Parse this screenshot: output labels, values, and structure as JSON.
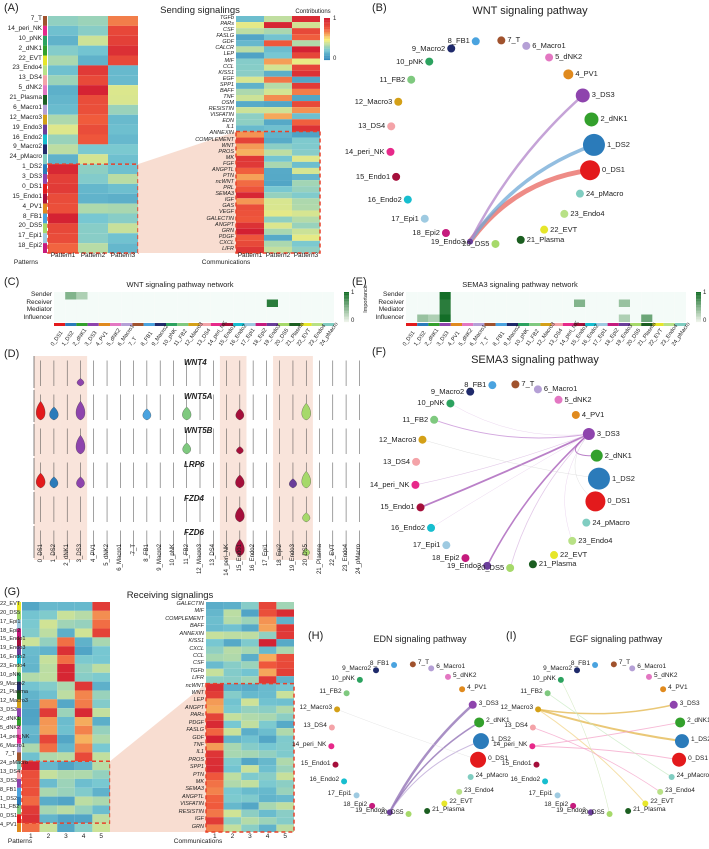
{
  "panels": {
    "A": {
      "label": "(A)",
      "title": "Sending signalings",
      "xlabel_left": "Patterns",
      "xlabel_right": "Communications",
      "patterns": [
        "Pattern1",
        "Pattern2",
        "Pattern3"
      ],
      "rows": [
        "7_T",
        "14_peri_NK",
        "10_pNK",
        "2_dNK1",
        "22_EVT",
        "23_Endo4",
        "13_DS4",
        "5_dNK2",
        "21_Plasma",
        "6_Macro1",
        "12_Macro3",
        "19_Endo3",
        "16_Endo2",
        "9_Macro2",
        "24_pMacro",
        "1_DS2",
        "3_DS3",
        "0_DS1",
        "15_Endo1",
        "4_PV1",
        "8_FB1",
        "20_DS5",
        "17_Epi1",
        "18_Epi2"
      ],
      "pathways": [
        "TGFb",
        "PARs",
        "CSF",
        "FASLG",
        "GDF",
        "CALCR",
        "LEP",
        "MIF",
        "CCL",
        "KISS1",
        "EGF",
        "SPP1",
        "BAFF",
        "TNF",
        "OSM",
        "RESISTIN",
        "VISFATIN",
        "EDN",
        "IL1",
        "ANNEXIN",
        "COMPLEMENT",
        "WNT",
        "PROS",
        "MK",
        "FGF",
        "ANGPTL",
        "PTN",
        "ncWNT",
        "PRL",
        "SEMA3",
        "IGF",
        "GAS",
        "VEGF",
        "GALECTIN",
        "ANGPT",
        "GRN",
        "PDGF",
        "CXCL",
        "LIFR"
      ],
      "legend_title": "Contributions",
      "legend_ticks": [
        "1",
        "0"
      ]
    },
    "B": {
      "label": "(B)",
      "title": "WNT signaling pathway"
    },
    "C": {
      "label": "(C)",
      "title": "WNT signaling pathway network",
      "legend_title": "Importance",
      "legend_ticks": [
        "1",
        "0"
      ]
    },
    "D": {
      "label": "(D)",
      "genes": [
        "WNT4",
        "WNT5A",
        "WNT5B",
        "LRP6",
        "FZD4",
        "FZD6"
      ]
    },
    "E": {
      "label": "(E)",
      "title": "SEMA3 signaling pathway network",
      "legend_title": "Importance",
      "legend_ticks": [
        "1",
        "0"
      ]
    },
    "F": {
      "label": "(F)",
      "title": "SEMA3 signaling pathway"
    },
    "G": {
      "label": "(G)",
      "title": "Receiving signalings",
      "xlabel_left": "Patterns",
      "xlabel_right": "Communications",
      "patterns": [
        "1",
        "2",
        "3",
        "4",
        "5"
      ],
      "rows": [
        "22_EVT",
        "20_DS5",
        "17_Epi1",
        "18_Epi2",
        "15_Endo1",
        "19_Endo3",
        "16_Endo2",
        "23_Endo4",
        "10_pNK",
        "9_Macro2",
        "21_Plasma",
        "12_Macro3",
        "3_DS3",
        "2_dNK1",
        "5_dNK2",
        "14_peri_NK",
        "6_Macro1",
        "7_T",
        "24_pMacro",
        "13_DS4",
        "3_DS3",
        "8_FB1",
        "1_DS2",
        "11_FB2",
        "0_DS1",
        "4_PV1"
      ],
      "pathways": [
        "GALECTIN",
        "MIF",
        "COMPLEMENT",
        "BAFF",
        "ANNEXIN",
        "KISS1",
        "CXCL",
        "CCL",
        "CSF",
        "TGFb",
        "LIFR",
        "ncWNT",
        "WNT",
        "LEP",
        "ANGPT",
        "PARs",
        "PDGF",
        "FASLG",
        "GDF",
        "TNF",
        "IL1",
        "PROS",
        "SPP1",
        "PTN",
        "MK",
        "SEMA3",
        "ANGPTL",
        "VISFATIN",
        "RESISTIN",
        "IGF",
        "GRN"
      ]
    },
    "H": {
      "label": "(H)",
      "title": "EDN signaling pathway"
    },
    "I": {
      "label": "(I)",
      "title": "EGF signaling pathway"
    }
  },
  "network_labels": [
    "Sender",
    "Receiver",
    "Mediator",
    "Influencer"
  ],
  "cell_types": [
    "0_DS1",
    "1_DS2",
    "2_dNK1",
    "3_DS3",
    "4_PV1",
    "5_dNK2",
    "6_Macro1",
    "7_T",
    "8_FB1",
    "9_Macro2",
    "10_pNK",
    "11_FB2",
    "12_Macro3",
    "13_DS4",
    "14_peri_NK",
    "15_Endo1",
    "16_Endo2",
    "17_Epi1",
    "18_Epi2",
    "19_Endo3",
    "20_DS5",
    "21_Plasma",
    "22_EVT",
    "23_Endo4",
    "24_pMacro"
  ],
  "colors": {
    "DS1": "#e31a1c",
    "DS2": "#2b7bba",
    "dNK1": "#33a02c",
    "DS3": "#8e44ad",
    "PV1": "#e08a1e",
    "dNK2": "#e377c2",
    "Macro1": "#b5a0d6",
    "T": "#a0522d",
    "FB1": "#4aa3df",
    "Macro2": "#1f2a6b",
    "pNK": "#2ca25f",
    "FB2": "#7fc97f",
    "Macro3": "#d4a017",
    "DS4": "#f4a3a8",
    "periNK": "#e7298a",
    "Endo1": "#a50f3b",
    "Endo2": "#17becf",
    "Epi1": "#9ecae1",
    "Epi2": "#c51b7d",
    "Endo3": "#6a3d9a",
    "DS5": "#a6d96a",
    "Plasma": "#1b5e20",
    "EVT": "#e6e62a",
    "Endo4": "#b8e186",
    "pMacro": "#80cdc1"
  }
}
